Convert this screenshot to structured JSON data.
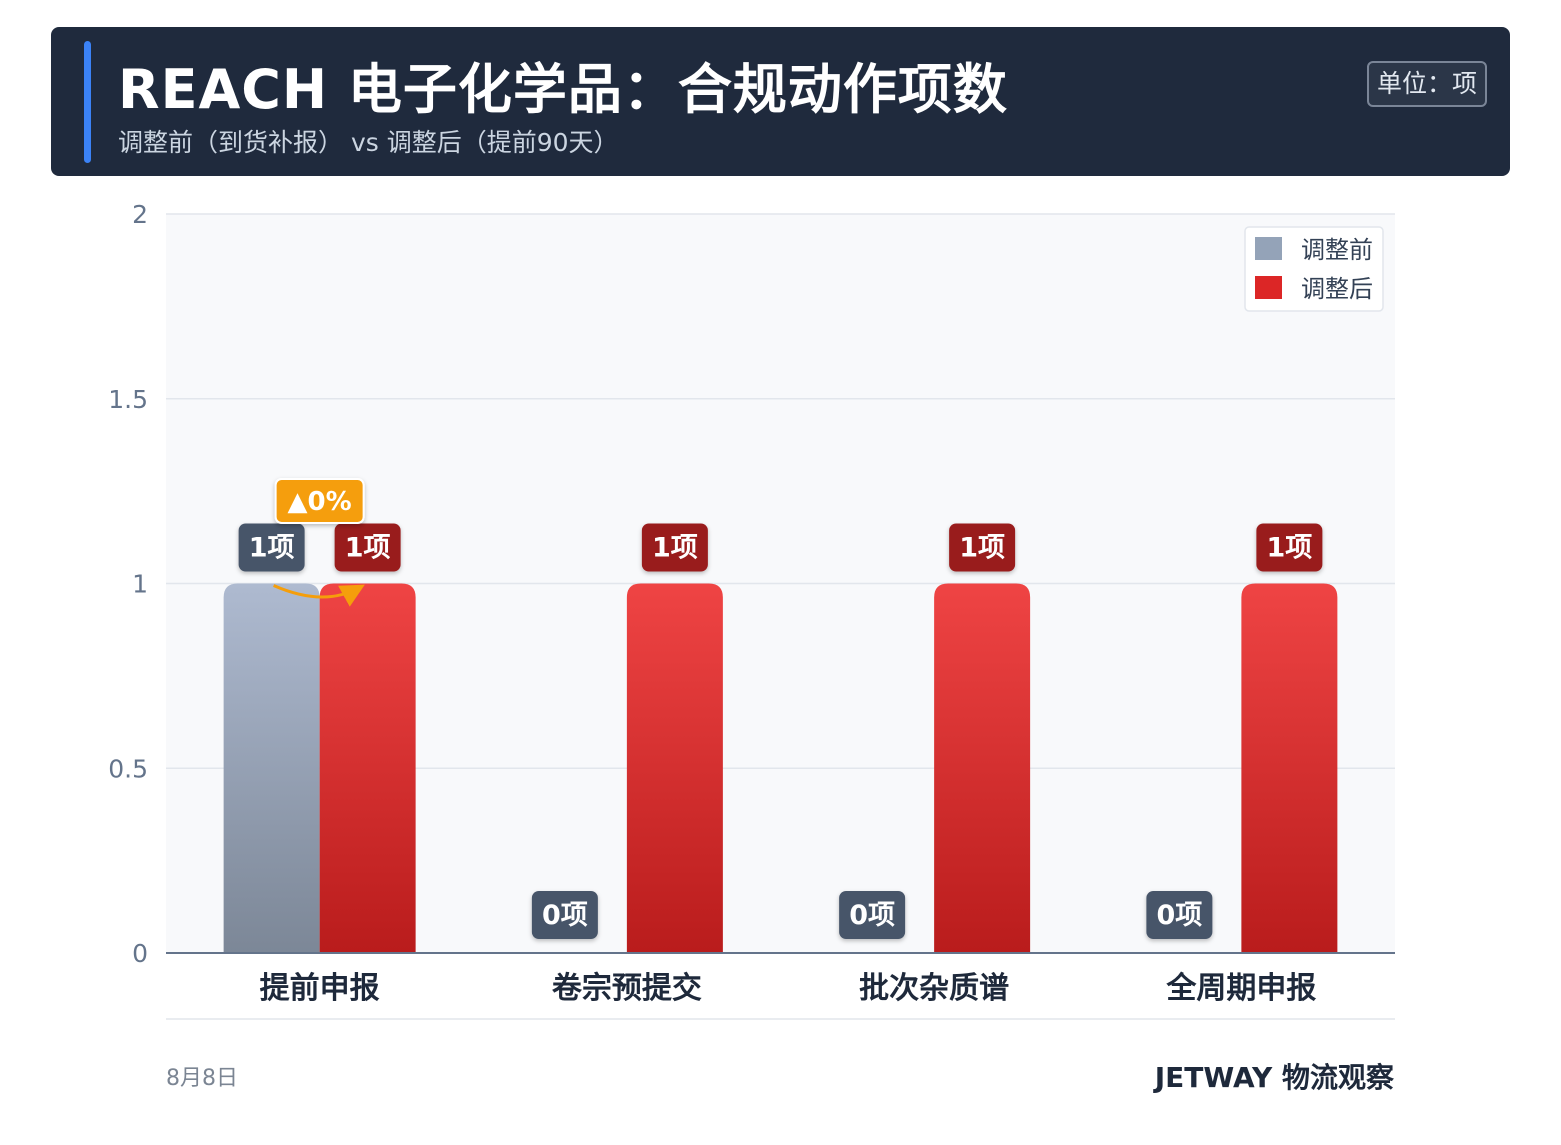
{
  "header": {
    "title": "REACH 电子化学品：合规动作项数",
    "subtitle": "调整前（到货补报） vs 调整后（提前90天）",
    "unit": "单位：项"
  },
  "footer": {
    "date": "8月8日",
    "brand": "JETWAY 物流观察"
  },
  "colors": {
    "before": "#94a3b8",
    "after": "#dc2626",
    "label_before": "#475569",
    "label_after": "#991b1b",
    "change_badge": "#f59e0b"
  },
  "chart_data": {
    "type": "bar",
    "categories": [
      "提前申报",
      "卷宗预提交",
      "批次杂质谱",
      "全周期申报"
    ],
    "series": [
      {
        "name": "调整前",
        "values": [
          1,
          0,
          0,
          0
        ]
      },
      {
        "name": "调整后",
        "values": [
          1,
          1,
          1,
          1
        ]
      }
    ],
    "value_labels": [
      [
        "1项",
        "0项",
        "0项",
        "0项"
      ],
      [
        "1项",
        "1项",
        "1项",
        "1项"
      ]
    ],
    "ylim": [
      0,
      2
    ],
    "yticks": [
      "0",
      "0.5",
      "1",
      "1.5",
      "2"
    ],
    "grid": true,
    "legend_position": "top-right",
    "change_annotation": {
      "category": "提前申报",
      "text": "▲0%"
    }
  }
}
